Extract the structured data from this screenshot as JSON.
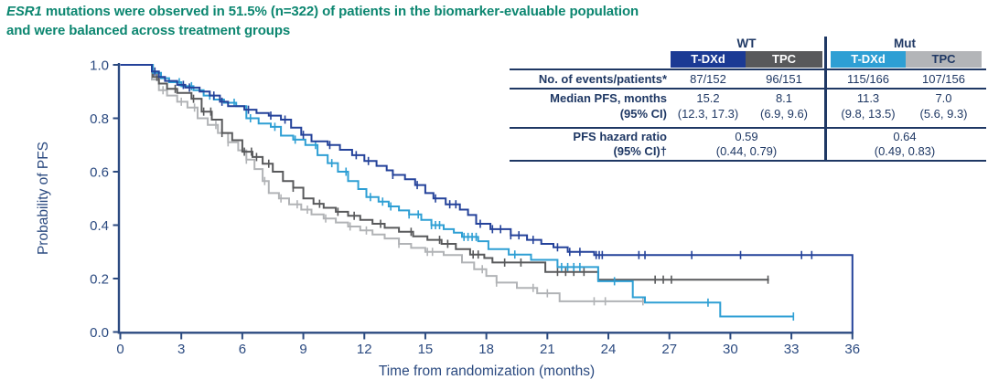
{
  "title": {
    "gene": "ESR1",
    "line1_rest": " mutations were observed in 51.5% (n=322) of patients in the biomarker-evaluable population",
    "line2": "and were balanced across treatment groups",
    "color": "#0c8670"
  },
  "results_table": {
    "group_headers": [
      "WT",
      "Mut"
    ],
    "columns": [
      {
        "label": "T-DXd",
        "bg": "#1b3a94",
        "fg": "#ffffff"
      },
      {
        "label": "TPC",
        "bg": "#58595b",
        "fg": "#ffffff"
      },
      {
        "label": "T-DXd",
        "bg": "#2e9fd4",
        "fg": "#ffffff"
      },
      {
        "label": "TPC",
        "bg": "#b3b5b8",
        "fg": "#1f3864"
      }
    ],
    "rows": {
      "events": {
        "label": "No. of events/patients*",
        "values": [
          "87/152",
          "96/151",
          "115/166",
          "107/156"
        ]
      },
      "median": {
        "label": "Median PFS, months",
        "label2": "(95% CI)",
        "values": [
          "15.2",
          "8.1",
          "11.3",
          "7.0"
        ],
        "ci": [
          "(12.3, 17.3)",
          "(6.9, 9.6)",
          "(9.8, 13.5)",
          "(5.6, 9.3)"
        ]
      },
      "hazard": {
        "label": "PFS hazard ratio",
        "label2": "(95% CI)†",
        "values": [
          "0.59",
          "0.64"
        ],
        "ci": [
          "(0.44, 0.79)",
          "(0.49, 0.83)"
        ]
      }
    }
  },
  "chart_data": {
    "type": "line",
    "subtype": "kaplan-meier",
    "xlabel": "Time from randomization (months)",
    "ylabel": "Probability of PFS",
    "xlim": [
      0,
      36
    ],
    "xticks": [
      0,
      3,
      6,
      9,
      12,
      15,
      18,
      21,
      24,
      27,
      30,
      33,
      36
    ],
    "ylim": [
      0,
      1.0
    ],
    "yticks": [
      0.0,
      0.2,
      0.4,
      0.6,
      0.8,
      1.0
    ],
    "grid": false,
    "legend": "none (series identified by table header colors)",
    "axis_color": "#2b4a80",
    "series": [
      {
        "name": "Mut TPC",
        "color": "#b1b3b6",
        "median_months": 7.0,
        "steps": [
          [
            0,
            1.0
          ],
          [
            1.4,
            1.0
          ],
          [
            1.55,
            0.945
          ],
          [
            1.9,
            0.905
          ],
          [
            2.3,
            0.885
          ],
          [
            2.8,
            0.862
          ],
          [
            3.3,
            0.84
          ],
          [
            3.8,
            0.8
          ],
          [
            4.3,
            0.775
          ],
          [
            4.8,
            0.745
          ],
          [
            5.3,
            0.71
          ],
          [
            5.8,
            0.68
          ],
          [
            6.2,
            0.645
          ],
          [
            6.6,
            0.61
          ],
          [
            7.0,
            0.565
          ],
          [
            7.3,
            0.52
          ],
          [
            7.8,
            0.5
          ],
          [
            8.3,
            0.478
          ],
          [
            8.9,
            0.458
          ],
          [
            9.4,
            0.44
          ],
          [
            10.0,
            0.425
          ],
          [
            10.6,
            0.41
          ],
          [
            11.2,
            0.395
          ],
          [
            11.8,
            0.38
          ],
          [
            12.4,
            0.365
          ],
          [
            13.0,
            0.35
          ],
          [
            13.7,
            0.33
          ],
          [
            14.3,
            0.315
          ],
          [
            15.0,
            0.3
          ],
          [
            15.9,
            0.288
          ],
          [
            16.8,
            0.26
          ],
          [
            17.4,
            0.235
          ],
          [
            18.0,
            0.21
          ],
          [
            18.5,
            0.185
          ],
          [
            19.5,
            0.165
          ],
          [
            20.5,
            0.145
          ],
          [
            21.6,
            0.115
          ],
          [
            25.8,
            0.115
          ]
        ],
        "censors": [
          2.1,
          3.0,
          3.65,
          4.7,
          5.3,
          6.2,
          7.1,
          7.9,
          8.7,
          9.2,
          10.1,
          11.3,
          12.1,
          13.7,
          15.1,
          15.35,
          17.8,
          18.5,
          20.3,
          21.0,
          23.3,
          23.85,
          25.7
        ]
      },
      {
        "name": "WT TPC",
        "color": "#58595b",
        "median_months": 8.1,
        "steps": [
          [
            0,
            1.0
          ],
          [
            1.4,
            1.0
          ],
          [
            1.6,
            0.955
          ],
          [
            1.9,
            0.93
          ],
          [
            2.3,
            0.91
          ],
          [
            2.8,
            0.895
          ],
          [
            3.5,
            0.873
          ],
          [
            4.0,
            0.825
          ],
          [
            4.5,
            0.795
          ],
          [
            5.0,
            0.745
          ],
          [
            5.5,
            0.718
          ],
          [
            6.0,
            0.675
          ],
          [
            6.5,
            0.655
          ],
          [
            7.0,
            0.63
          ],
          [
            7.5,
            0.6
          ],
          [
            8.0,
            0.565
          ],
          [
            8.5,
            0.54
          ],
          [
            9.0,
            0.5
          ],
          [
            9.5,
            0.48
          ],
          [
            10.0,
            0.465
          ],
          [
            10.6,
            0.45
          ],
          [
            11.2,
            0.435
          ],
          [
            11.8,
            0.42
          ],
          [
            12.4,
            0.405
          ],
          [
            13.0,
            0.39
          ],
          [
            13.7,
            0.375
          ],
          [
            14.4,
            0.358
          ],
          [
            15.1,
            0.345
          ],
          [
            15.8,
            0.33
          ],
          [
            16.5,
            0.31
          ],
          [
            17.2,
            0.29
          ],
          [
            17.9,
            0.277
          ],
          [
            18.3,
            0.26
          ],
          [
            20.9,
            0.225
          ],
          [
            23.5,
            0.196
          ],
          [
            31.9,
            0.196
          ]
        ],
        "censors": [
          1.8,
          2.7,
          3.6,
          4.1,
          4.45,
          5.0,
          6.1,
          6.45,
          6.7,
          7.3,
          8.5,
          9.8,
          10.7,
          11.5,
          12.8,
          14.3,
          15.7,
          16.1,
          17.35,
          17.6,
          18.9,
          19.7,
          21.5,
          21.9,
          22.3,
          22.8,
          26.3,
          26.7,
          27.1,
          31.85
        ]
      },
      {
        "name": "Mut T-DXd",
        "color": "#2e9fd4",
        "median_months": 11.3,
        "steps": [
          [
            0,
            1.0
          ],
          [
            1.4,
            1.0
          ],
          [
            1.6,
            0.97
          ],
          [
            2.0,
            0.95
          ],
          [
            2.4,
            0.935
          ],
          [
            3.0,
            0.92
          ],
          [
            3.6,
            0.905
          ],
          [
            4.1,
            0.885
          ],
          [
            4.6,
            0.87
          ],
          [
            5.1,
            0.858
          ],
          [
            5.7,
            0.845
          ],
          [
            6.2,
            0.8
          ],
          [
            6.8,
            0.78
          ],
          [
            7.4,
            0.768
          ],
          [
            7.9,
            0.735
          ],
          [
            8.5,
            0.72
          ],
          [
            9.1,
            0.7
          ],
          [
            9.7,
            0.662
          ],
          [
            10.2,
            0.632
          ],
          [
            10.7,
            0.6
          ],
          [
            11.2,
            0.565
          ],
          [
            11.7,
            0.535
          ],
          [
            12.1,
            0.505
          ],
          [
            12.7,
            0.488
          ],
          [
            13.2,
            0.47
          ],
          [
            13.7,
            0.455
          ],
          [
            14.2,
            0.44
          ],
          [
            14.8,
            0.42
          ],
          [
            15.3,
            0.4
          ],
          [
            15.9,
            0.385
          ],
          [
            16.4,
            0.372
          ],
          [
            16.8,
            0.356
          ],
          [
            17.6,
            0.34
          ],
          [
            18.1,
            0.31
          ],
          [
            19.1,
            0.29
          ],
          [
            20.2,
            0.27
          ],
          [
            21.5,
            0.243
          ],
          [
            23.5,
            0.19
          ],
          [
            25.2,
            0.13
          ],
          [
            25.8,
            0.11
          ],
          [
            29.5,
            0.058
          ],
          [
            33.1,
            0.058
          ]
        ],
        "censors": [
          2.9,
          3.5,
          4.4,
          5.6,
          6.4,
          7.6,
          8.6,
          9.6,
          10.4,
          11.1,
          12.3,
          12.9,
          13.3,
          14.2,
          14.65,
          15.3,
          15.5,
          15.7,
          16.9,
          17.1,
          17.3,
          17.5,
          19.4,
          21.7,
          22.0,
          22.3,
          22.6,
          24.3,
          28.9,
          33.1
        ]
      },
      {
        "name": "WT T-DXd",
        "color": "#24429a",
        "median_months": 15.2,
        "steps": [
          [
            0,
            1.0
          ],
          [
            1.4,
            1.0
          ],
          [
            1.55,
            0.975
          ],
          [
            1.9,
            0.955
          ],
          [
            2.2,
            0.94
          ],
          [
            2.8,
            0.925
          ],
          [
            3.2,
            0.915
          ],
          [
            3.9,
            0.9
          ],
          [
            4.4,
            0.885
          ],
          [
            4.9,
            0.862
          ],
          [
            5.3,
            0.845
          ],
          [
            6.1,
            0.832
          ],
          [
            6.7,
            0.82
          ],
          [
            7.3,
            0.81
          ],
          [
            7.9,
            0.795
          ],
          [
            8.4,
            0.765
          ],
          [
            8.9,
            0.738
          ],
          [
            9.4,
            0.714
          ],
          [
            10.2,
            0.7
          ],
          [
            10.8,
            0.682
          ],
          [
            11.4,
            0.662
          ],
          [
            12.0,
            0.64
          ],
          [
            12.6,
            0.622
          ],
          [
            13.1,
            0.605
          ],
          [
            13.4,
            0.588
          ],
          [
            14.0,
            0.572
          ],
          [
            14.5,
            0.55
          ],
          [
            15.0,
            0.52
          ],
          [
            15.4,
            0.5
          ],
          [
            16.0,
            0.478
          ],
          [
            16.7,
            0.458
          ],
          [
            17.1,
            0.438
          ],
          [
            17.5,
            0.405
          ],
          [
            18.2,
            0.385
          ],
          [
            19.2,
            0.362
          ],
          [
            20.0,
            0.345
          ],
          [
            20.7,
            0.33
          ],
          [
            21.3,
            0.317
          ],
          [
            22.0,
            0.3
          ],
          [
            23.3,
            0.288
          ],
          [
            36,
            0.288
          ],
          [
            36,
            0
          ]
        ],
        "censors": [
          1.7,
          3.1,
          3.4,
          4.6,
          5.0,
          6.3,
          7.4,
          8.1,
          9.0,
          10.3,
          11.6,
          12.2,
          13.4,
          14.6,
          15.5,
          16.2,
          16.5,
          17.7,
          18.3,
          18.7,
          19.2,
          19.6,
          20.3,
          21.5,
          22.1,
          22.6,
          23.4,
          23.55,
          23.7,
          25.5,
          25.8,
          28.1,
          30.5,
          33.5,
          34.0
        ]
      }
    ]
  }
}
